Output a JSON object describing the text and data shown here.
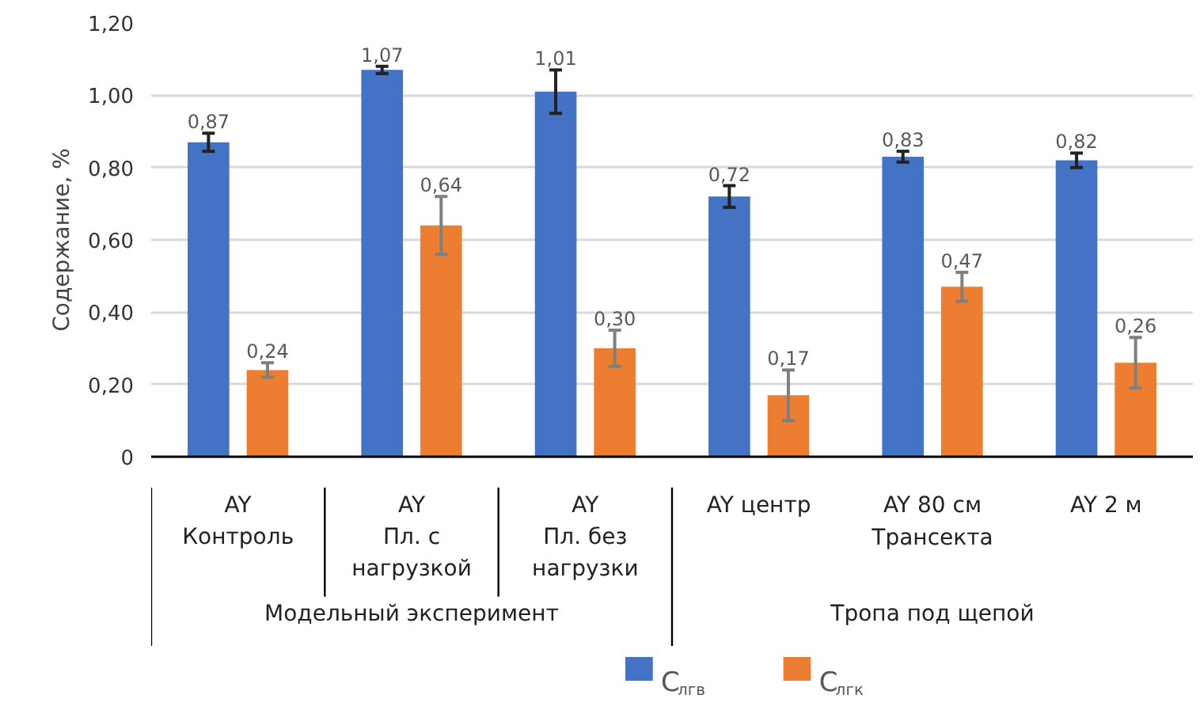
{
  "chart_data": {
    "type": "bar",
    "ylabel": "Содержание, %",
    "categories": [
      "AY\nКонтроль",
      "AY\nПл. с\nнагрузкой",
      "AY\nПл. без\nнагрузки",
      "AY центр",
      "AY 80 см",
      "AY 2 м"
    ],
    "annotations": [
      "Трансекта",
      "Модельный эксперимент",
      "Тропа под щепой"
    ],
    "series": [
      {
        "name": "C$_{лгв}$",
        "color": "#4472c4",
        "values": [
          0.87,
          1.07,
          1.01,
          0.72,
          0.83,
          0.82
        ],
        "errors": [
          0.025,
          0.01,
          0.06,
          0.03,
          0.015,
          0.02
        ],
        "value_labels": [
          "0,87",
          "1,07",
          "1,01",
          "0,72",
          "0,83",
          "0,82"
        ]
      },
      {
        "name": "C$_{лгк}$",
        "color": "#ed7d31",
        "values": [
          0.24,
          0.64,
          0.3,
          0.17,
          0.47,
          0.26
        ],
        "errors": [
          0.02,
          0.08,
          0.05,
          0.07,
          0.04,
          0.07
        ],
        "value_labels": [
          "0,24",
          "0,64",
          "0,30",
          "0,17",
          "0,47",
          "0,26"
        ]
      }
    ],
    "ylim": [
      0,
      1.2
    ],
    "yticks": [
      {
        "value": 0,
        "label": "0"
      },
      {
        "value": 0.2,
        "label": "0,20"
      },
      {
        "value": 0.4,
        "label": "0,40"
      },
      {
        "value": 0.6,
        "label": "0,60"
      },
      {
        "value": 0.8,
        "label": "0,80"
      },
      {
        "value": 1.0,
        "label": "1,00"
      },
      {
        "value": 1.2,
        "label": "1,20"
      }
    ],
    "grid": "y",
    "legend": "bottom"
  }
}
